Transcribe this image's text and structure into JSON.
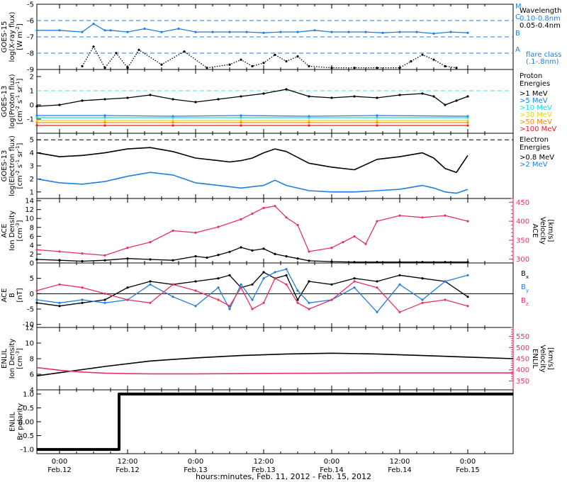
{
  "colors": {
    "black": "#000000",
    "blue": "#1f7fe0",
    "cyan": "#1fd6d6",
    "green": "#2ec32e",
    "yellow": "#e6d21e",
    "orange": "#ee8a1a",
    "red": "#e81e1e",
    "pink": "#e8335f",
    "dashed_blue": "#1f7fe0",
    "dashed_cyan": "#3fe0e0"
  },
  "time_axis": {
    "xlabel": "hours:minutes, Feb. 11, 2012 - Feb. 15, 2012",
    "ticks": [
      {
        "hour": 0,
        "time": "0:00",
        "date": "Feb.12"
      },
      {
        "hour": 12,
        "time": "12:00",
        "date": "Feb.12"
      },
      {
        "hour": 24,
        "time": "0:00",
        "date": "Feb.13"
      },
      {
        "hour": 36,
        "time": "12:00",
        "date": "Feb.13"
      },
      {
        "hour": 48,
        "time": "0:00",
        "date": "Feb.14"
      },
      {
        "hour": 60,
        "time": "12:00",
        "date": "Feb.14"
      },
      {
        "hour": 72,
        "time": "0:00",
        "date": "Feb.15"
      }
    ]
  },
  "chart_data": [
    {
      "id": "xray",
      "type": "scatter",
      "ylabel_lines": [
        "GOES-15",
        "log(X-ray flux)",
        "[W m^-2]"
      ],
      "ylim": [
        -9,
        -5
      ],
      "yticks": [
        -9,
        -8,
        -7,
        -6,
        -5
      ],
      "ytick_labels": [
        "-9",
        "-8",
        "-7",
        "-6",
        "-5"
      ],
      "flare_levels": [
        {
          "label": "M",
          "y": -5
        },
        {
          "label": "C",
          "y": -6
        },
        {
          "label": "B",
          "y": -7
        },
        {
          "label": "A",
          "y": -8
        }
      ],
      "legend": {
        "title": "Wavelength",
        "entries": [
          {
            "label": "0.10-0.8nm",
            "color_key": "blue"
          },
          {
            "label": "0.05-0.4nm",
            "color_key": "black"
          }
        ],
        "note_lines": [
          "flare class",
          "(.1-.8nm)"
        ]
      },
      "series": [
        {
          "name": "0.10-0.8nm",
          "color_key": "blue",
          "x": [
            -4,
            0,
            4,
            6,
            8,
            9,
            12,
            15,
            18,
            21,
            24,
            27,
            30,
            33,
            36,
            39,
            42,
            45,
            48,
            51,
            54,
            57,
            60,
            63,
            66,
            69,
            72
          ],
          "y": [
            -6.6,
            -6.6,
            -6.7,
            -6.2,
            -6.6,
            -6.6,
            -6.7,
            -6.5,
            -6.7,
            -6.5,
            -6.7,
            -6.7,
            -6.7,
            -6.7,
            -6.75,
            -6.7,
            -6.7,
            -6.6,
            -6.7,
            -6.7,
            -6.7,
            -6.75,
            -6.7,
            -6.7,
            -6.8,
            -6.7,
            -6.75
          ]
        },
        {
          "name": "0.05-0.4nm",
          "color_key": "black",
          "x": [
            4,
            6,
            8,
            10,
            12,
            14,
            18,
            22,
            26,
            30,
            32,
            34,
            36,
            38,
            40,
            42,
            44,
            48,
            52,
            56,
            60,
            62,
            64,
            66,
            68,
            70
          ],
          "y": [
            -8.8,
            -7.6,
            -8.9,
            -8.0,
            -8.9,
            -7.8,
            -8.7,
            -7.9,
            -8.9,
            -8.7,
            -8.4,
            -8.8,
            -8.6,
            -8.1,
            -8.5,
            -8.2,
            -8.8,
            -8.9,
            -8.9,
            -8.9,
            -8.9,
            -8.5,
            -8.1,
            -8.4,
            -8.8,
            -8.9
          ]
        }
      ]
    },
    {
      "id": "proton",
      "type": "scatter",
      "ylabel_lines": [
        "GOES-13",
        "log(Proton flux)",
        "[cm^-2 s^-1 sr^-1]"
      ],
      "ylim": [
        -2,
        2.5
      ],
      "yticks": [
        -1,
        0,
        1,
        2
      ],
      "ytick_labels": [
        "-1",
        "0",
        "1",
        "2"
      ],
      "threshold": 1,
      "legend": {
        "title_lines": [
          "Proton",
          "Energies"
        ],
        "entries": [
          {
            "label": ">1 MeV",
            "color_key": "black"
          },
          {
            "label": ">5 MeV",
            "color_key": "blue"
          },
          {
            "label": ">10 MeV",
            "color_key": "cyan"
          },
          {
            "label": ">30 MeV",
            "color_key": "yellow"
          },
          {
            "label": ">50 MeV",
            "color_key": "orange"
          },
          {
            "label": ">100 MeV",
            "color_key": "red"
          }
        ]
      },
      "series": [
        {
          "name": ">1 MeV",
          "color_key": "black",
          "x": [
            -4,
            0,
            4,
            8,
            12,
            16,
            20,
            24,
            28,
            32,
            36,
            40,
            44,
            48,
            52,
            56,
            60,
            64,
            66,
            68,
            70,
            72
          ],
          "y": [
            -0.1,
            0.0,
            0.3,
            0.4,
            0.5,
            0.7,
            0.4,
            0.2,
            0.4,
            0.6,
            0.8,
            1.1,
            0.6,
            0.5,
            0.6,
            0.5,
            0.7,
            0.8,
            0.6,
            0.0,
            0.3,
            0.6
          ]
        },
        {
          "name": ">5 MeV",
          "color_key": "blue",
          "x": [
            -4,
            8,
            20,
            32,
            44,
            56,
            72
          ],
          "y": [
            -0.75,
            -0.75,
            -0.8,
            -0.75,
            -0.8,
            -0.75,
            -0.8
          ]
        },
        {
          "name": ">10 MeV",
          "color_key": "cyan",
          "x": [
            -4,
            8,
            20,
            32,
            44,
            56,
            72
          ],
          "y": [
            -0.9,
            -0.9,
            -0.9,
            -0.9,
            -0.9,
            -0.9,
            -0.9
          ]
        },
        {
          "name": ">30 MeV",
          "color_key": "yellow",
          "x": [
            -4,
            8,
            20,
            32,
            44,
            56,
            72
          ],
          "y": [
            -1.1,
            -1.1,
            -1.1,
            -1.1,
            -1.1,
            -1.1,
            -1.1
          ]
        },
        {
          "name": ">50 MeV",
          "color_key": "orange",
          "x": [
            -4,
            8,
            20,
            32,
            44,
            56,
            72
          ],
          "y": [
            -1.25,
            -1.25,
            -1.25,
            -1.25,
            -1.25,
            -1.25,
            -1.25
          ]
        },
        {
          "name": ">100 MeV",
          "color_key": "red",
          "x": [
            -4,
            8,
            20,
            32,
            44,
            56,
            72
          ],
          "y": [
            -1.45,
            -1.45,
            -1.45,
            -1.45,
            -1.45,
            -1.45,
            -1.45
          ]
        }
      ]
    },
    {
      "id": "electron",
      "type": "line",
      "ylabel_lines": [
        "GOES-13",
        "log(Electron flux)",
        "[cm^-2 s^-1 sr^-1]"
      ],
      "ylim": [
        0.5,
        5.5
      ],
      "yticks": [
        1,
        2,
        3,
        4,
        5
      ],
      "ytick_labels": [
        "1",
        "2",
        "3",
        "4",
        "5"
      ],
      "threshold": 5,
      "legend": {
        "title_lines": [
          "Electron",
          "Energies"
        ],
        "entries": [
          {
            "label": ">0.8 MeV",
            "color_key": "black"
          },
          {
            "label": ">2 MeV",
            "color_key": "blue"
          }
        ]
      },
      "series": [
        {
          "name": ">0.8 MeV",
          "color_key": "black",
          "x": [
            -4,
            0,
            4,
            8,
            12,
            16,
            20,
            24,
            28,
            30,
            32,
            34,
            36,
            38,
            40,
            44,
            48,
            52,
            56,
            60,
            64,
            66,
            68,
            70,
            72
          ],
          "y": [
            4.0,
            3.7,
            3.8,
            4.0,
            4.3,
            4.4,
            4.1,
            3.6,
            3.4,
            3.3,
            3.4,
            3.6,
            4.0,
            4.3,
            4.1,
            3.2,
            2.9,
            2.7,
            3.5,
            3.7,
            4.0,
            3.6,
            2.8,
            2.5,
            3.8
          ]
        },
        {
          "name": ">2 MeV",
          "color_key": "blue",
          "x": [
            -4,
            0,
            4,
            8,
            12,
            16,
            20,
            24,
            28,
            32,
            34,
            36,
            38,
            40,
            44,
            48,
            52,
            56,
            60,
            64,
            66,
            68,
            70,
            72
          ],
          "y": [
            2.0,
            1.7,
            1.6,
            1.8,
            2.2,
            2.5,
            2.3,
            1.7,
            1.5,
            1.3,
            1.4,
            1.5,
            1.9,
            1.5,
            1.1,
            1.0,
            1.0,
            1.1,
            1.2,
            1.5,
            1.3,
            1.0,
            0.9,
            1.2
          ]
        }
      ]
    },
    {
      "id": "ace_density_velocity",
      "type": "scatter",
      "ylabel_lines": [
        "ACE",
        "Ion Density",
        "[cm^-3]"
      ],
      "ylim": [
        0,
        14.5
      ],
      "yticks": [
        0,
        2,
        4,
        6,
        8,
        10,
        12,
        14
      ],
      "ytick_labels": [
        "0",
        "2",
        "4",
        "6",
        "8",
        "10",
        "12",
        "14"
      ],
      "right_axis": {
        "label_lines": [
          "ACE",
          "Velocity",
          "[km/s]"
        ],
        "ylim": [
          290,
          460
        ],
        "yticks": [
          300,
          350,
          400,
          450
        ],
        "ytick_labels": [
          "300",
          "350",
          "400",
          "450"
        ]
      },
      "series": [
        {
          "name": "density",
          "color_key": "black",
          "axis": "left",
          "x": [
            -4,
            0,
            4,
            8,
            12,
            16,
            20,
            24,
            26,
            28,
            30,
            32,
            34,
            36,
            38,
            40,
            42,
            44,
            48,
            52,
            56,
            60,
            64,
            68,
            72
          ],
          "y": [
            0.8,
            0.6,
            0.4,
            0.6,
            1.0,
            0.8,
            0.6,
            1.5,
            1.2,
            1.8,
            2.5,
            3.5,
            2.8,
            3.2,
            2.0,
            1.5,
            1.0,
            0.5,
            0.3,
            0.2,
            0.2,
            0.2,
            0.2,
            0.2,
            0.2
          ]
        },
        {
          "name": "velocity",
          "color_key": "pink",
          "axis": "right",
          "x": [
            -4,
            0,
            4,
            8,
            12,
            16,
            20,
            24,
            28,
            32,
            34,
            36,
            38,
            40,
            42,
            44,
            48,
            50,
            52,
            54,
            56,
            60,
            64,
            68,
            72
          ],
          "y": [
            325,
            320,
            315,
            310,
            330,
            345,
            375,
            370,
            385,
            405,
            420,
            435,
            440,
            410,
            390,
            320,
            330,
            345,
            360,
            340,
            400,
            415,
            410,
            415,
            400
          ]
        }
      ]
    },
    {
      "id": "ace_bfield",
      "type": "scatter",
      "ylabel_lines": [
        "ACE",
        "B",
        "[nT]"
      ],
      "ylim": [
        -11,
        10
      ],
      "yticks": [
        -10,
        -5,
        0,
        5
      ],
      "ytick_labels": [
        "-10",
        "-5",
        "0",
        "5"
      ],
      "zero_line": true,
      "legend": {
        "entries": [
          {
            "label": "Bx",
            "color_key": "black"
          },
          {
            "label": "By",
            "color_key": "blue"
          },
          {
            "label": "Bz",
            "color_key": "pink"
          }
        ]
      },
      "series": [
        {
          "name": "Bx",
          "color_key": "black",
          "x": [
            -4,
            0,
            4,
            8,
            12,
            16,
            20,
            24,
            28,
            30,
            32,
            34,
            36,
            38,
            40,
            42,
            44,
            48,
            52,
            56,
            60,
            64,
            68,
            72
          ],
          "y": [
            -3,
            -4,
            -3,
            -2,
            2,
            4,
            3,
            4,
            5,
            6,
            2,
            3,
            7,
            5,
            6,
            -2,
            4,
            3,
            5,
            4,
            6,
            5,
            4,
            -1
          ]
        },
        {
          "name": "By",
          "color_key": "blue",
          "x": [
            -4,
            0,
            4,
            8,
            12,
            16,
            20,
            24,
            28,
            30,
            32,
            34,
            36,
            38,
            40,
            42,
            44,
            48,
            52,
            56,
            60,
            64,
            68,
            72
          ],
          "y": [
            -2,
            -3,
            -2,
            -3,
            -2,
            3,
            -1,
            -4,
            2,
            -5,
            3,
            -2,
            5,
            7,
            8,
            1,
            -3,
            -2,
            2,
            -6,
            3,
            -2,
            4,
            6
          ]
        },
        {
          "name": "Bz",
          "color_key": "pink",
          "x": [
            -4,
            0,
            4,
            8,
            12,
            16,
            20,
            24,
            28,
            30,
            32,
            34,
            36,
            38,
            40,
            42,
            44,
            48,
            52,
            56,
            60,
            64,
            68,
            72
          ],
          "y": [
            1,
            3,
            2,
            0,
            -2,
            -3,
            3,
            1,
            -2,
            -4,
            2,
            -5,
            -3,
            5,
            3,
            -3,
            -5,
            -2,
            4,
            2,
            -6,
            -3,
            -2,
            -4
          ]
        }
      ]
    },
    {
      "id": "enlil_density_velocity",
      "type": "line",
      "ylabel_lines": [
        "ENLIL",
        "Ion Density",
        "[cm^-3]"
      ],
      "ylim": [
        4,
        12
      ],
      "yticks": [
        4,
        6,
        8,
        10,
        12
      ],
      "ytick_labels": [
        "4",
        "6",
        "8",
        "10",
        "12"
      ],
      "right_axis": {
        "label_lines": [
          "ENLIL",
          "Velocity",
          "[km/s]"
        ],
        "ylim": [
          310,
          590
        ],
        "yticks": [
          350,
          400,
          450,
          500,
          550
        ],
        "ytick_labels": [
          "350",
          "400",
          "450",
          "500",
          "550"
        ]
      },
      "series": [
        {
          "name": "density",
          "color_key": "black",
          "axis": "left",
          "x": [
            -4,
            0,
            8,
            16,
            24,
            32,
            40,
            48,
            56,
            64,
            72,
            80
          ],
          "y": [
            5.8,
            6.2,
            7.0,
            7.7,
            8.1,
            8.4,
            8.6,
            8.7,
            8.6,
            8.4,
            8.2,
            8.0
          ]
        },
        {
          "name": "velocity",
          "color_key": "pink",
          "axis": "right",
          "x": [
            -4,
            0,
            4,
            8,
            12,
            16,
            24,
            32,
            40,
            48,
            56,
            64,
            72,
            80
          ],
          "y": [
            410,
            398,
            390,
            385,
            383,
            382,
            382,
            383,
            384,
            385,
            386,
            386,
            386,
            386
          ]
        }
      ]
    },
    {
      "id": "enlil_polarity",
      "type": "line",
      "ylabel_lines": [
        "ENLIL",
        "Br polarity"
      ],
      "ylim": [
        -1.15,
        1.15
      ],
      "yticks": [
        -1.0,
        -0.5,
        0.0,
        0.5,
        1.0
      ],
      "ytick_labels": [
        "-1.0",
        "-0.5",
        "0.00",
        "0.5",
        "1.0"
      ],
      "series": [
        {
          "name": "polarity",
          "color_key": "black",
          "x": [
            -4,
            10.5,
            10.5,
            80
          ],
          "y": [
            -1,
            -1,
            1,
            1
          ]
        }
      ]
    }
  ]
}
